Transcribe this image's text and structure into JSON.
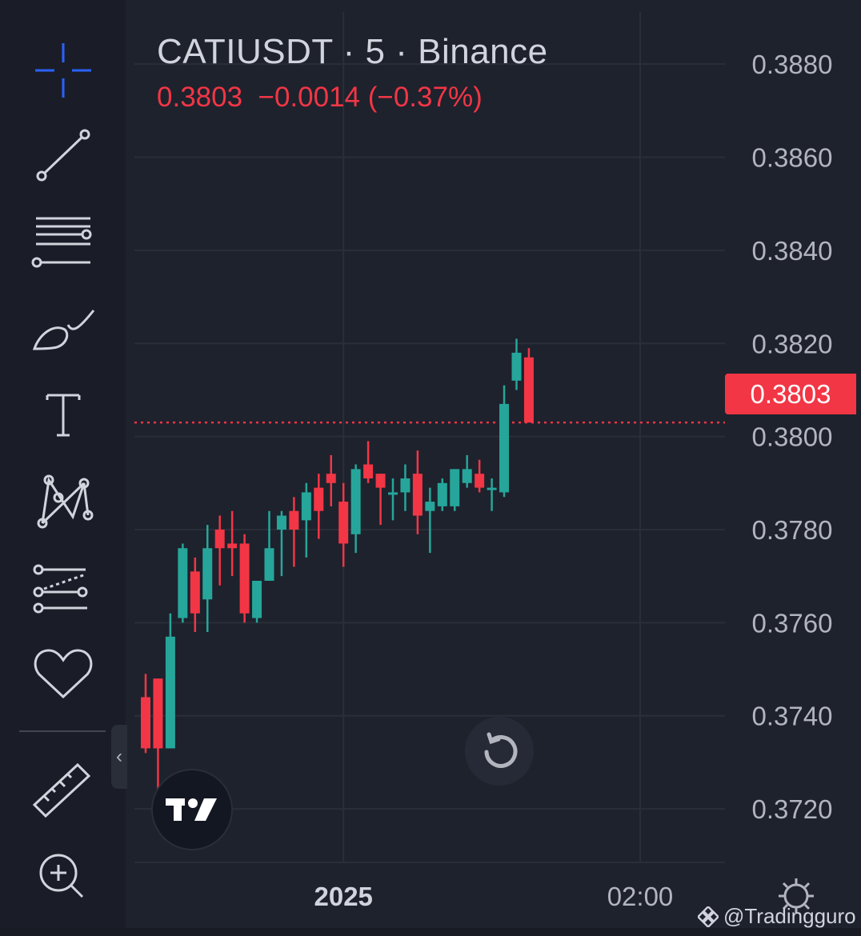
{
  "legend": {
    "symbol_title": "CATIUSDT · 5 · Binance",
    "last_price": "0.3803",
    "change": "−0.0014 (−0.37%)"
  },
  "price_tag": "0.3803",
  "watermark": "@Tradingguro",
  "colors": {
    "background": "#1e222d",
    "up": "#26a69a",
    "down": "#f23645",
    "grid": "#2a2e39",
    "axis_text": "#b2b5be"
  },
  "toolbar": {
    "tools": [
      "crosshair-icon",
      "trend-line-icon",
      "fib-retracement-icon",
      "brush-icon",
      "text-icon",
      "pattern-icon",
      "forecast-icon",
      "heart-icon",
      "ruler-icon",
      "zoom-in-icon"
    ]
  },
  "chart_data": {
    "type": "candlestick",
    "interval": "5",
    "exchange": "Binance",
    "y_ticks": [
      "0.3880",
      "0.3860",
      "0.3840",
      "0.3820",
      "0.3800",
      "0.3780",
      "0.3760",
      "0.3740",
      "0.3720"
    ],
    "y_tick_values": [
      0.388,
      0.386,
      0.384,
      0.382,
      0.38,
      0.378,
      0.376,
      0.374,
      0.372
    ],
    "x_ticks": [
      {
        "label": "2025",
        "bar_index": 16
      },
      {
        "label": "02:00",
        "bar_index": 40
      }
    ],
    "ylim": [
      0.37085,
      0.38912
    ],
    "last_price_line": 0.3803,
    "grid": true,
    "candles": [
      {
        "o": 0.3744,
        "h": 0.3749,
        "l": 0.3732,
        "c": 0.3733
      },
      {
        "o": 0.3748,
        "h": 0.3748,
        "l": 0.3723,
        "c": 0.3733
      },
      {
        "o": 0.3733,
        "h": 0.3762,
        "l": 0.3733,
        "c": 0.3757
      },
      {
        "o": 0.3761,
        "h": 0.3777,
        "l": 0.376,
        "c": 0.3776
      },
      {
        "o": 0.3771,
        "h": 0.3774,
        "l": 0.3758,
        "c": 0.3762
      },
      {
        "o": 0.3765,
        "h": 0.3781,
        "l": 0.3758,
        "c": 0.3776
      },
      {
        "o": 0.378,
        "h": 0.3783,
        "l": 0.3768,
        "c": 0.3776
      },
      {
        "o": 0.3777,
        "h": 0.3784,
        "l": 0.377,
        "c": 0.3776
      },
      {
        "o": 0.3777,
        "h": 0.3779,
        "l": 0.376,
        "c": 0.3762
      },
      {
        "o": 0.3761,
        "h": 0.3768,
        "l": 0.376,
        "c": 0.3769
      },
      {
        "o": 0.3769,
        "h": 0.3784,
        "l": 0.3769,
        "c": 0.3776
      },
      {
        "o": 0.378,
        "h": 0.3784,
        "l": 0.377,
        "c": 0.3783
      },
      {
        "o": 0.3784,
        "h": 0.3787,
        "l": 0.3772,
        "c": 0.378
      },
      {
        "o": 0.3782,
        "h": 0.379,
        "l": 0.3774,
        "c": 0.3788
      },
      {
        "o": 0.3789,
        "h": 0.3792,
        "l": 0.3778,
        "c": 0.3784
      },
      {
        "o": 0.3792,
        "h": 0.3796,
        "l": 0.3785,
        "c": 0.379
      },
      {
        "o": 0.3786,
        "h": 0.379,
        "l": 0.3772,
        "c": 0.3777
      },
      {
        "o": 0.3779,
        "h": 0.3794,
        "l": 0.3775,
        "c": 0.3793
      },
      {
        "o": 0.3794,
        "h": 0.3799,
        "l": 0.379,
        "c": 0.3791
      },
      {
        "o": 0.3792,
        "h": 0.3792,
        "l": 0.3781,
        "c": 0.3789
      },
      {
        "o": 0.3788,
        "h": 0.3791,
        "l": 0.3782,
        "c": 0.3788
      },
      {
        "o": 0.3788,
        "h": 0.3794,
        "l": 0.3784,
        "c": 0.3791
      },
      {
        "o": 0.3792,
        "h": 0.3797,
        "l": 0.3779,
        "c": 0.3783
      },
      {
        "o": 0.3784,
        "h": 0.3789,
        "l": 0.3775,
        "c": 0.3786
      },
      {
        "o": 0.3785,
        "h": 0.3791,
        "l": 0.3784,
        "c": 0.379
      },
      {
        "o": 0.3785,
        "h": 0.3793,
        "l": 0.3784,
        "c": 0.3793
      },
      {
        "o": 0.379,
        "h": 0.3796,
        "l": 0.3789,
        "c": 0.3793
      },
      {
        "o": 0.3792,
        "h": 0.3795,
        "l": 0.3788,
        "c": 0.3789
      },
      {
        "o": 0.3789,
        "h": 0.3791,
        "l": 0.3784,
        "c": 0.3789
      },
      {
        "o": 0.3788,
        "h": 0.3811,
        "l": 0.3787,
        "c": 0.3807
      },
      {
        "o": 0.3812,
        "h": 0.3821,
        "l": 0.381,
        "c": 0.3818
      },
      {
        "o": 0.3817,
        "h": 0.3819,
        "l": 0.3803,
        "c": 0.3803
      }
    ]
  }
}
